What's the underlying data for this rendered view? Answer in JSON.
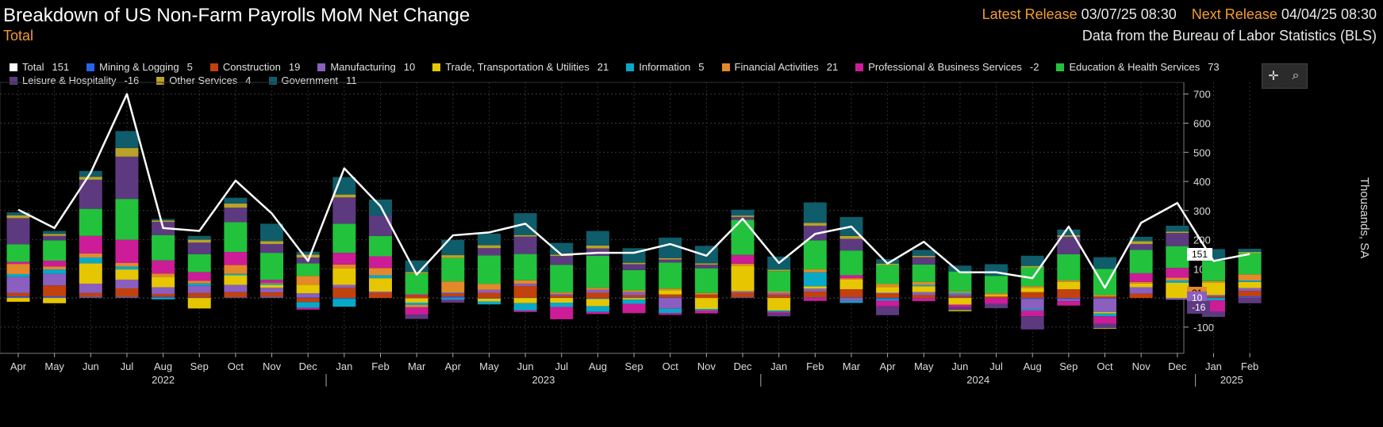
{
  "header": {
    "title": "Breakdown of US Non-Farm Payrolls MoM Net Change",
    "subtitle": "Total",
    "latest_label": "Latest Release",
    "latest_value": "03/07/25 08:30",
    "next_label": "Next Release",
    "next_value": "04/04/25 08:30",
    "source": "Data from the Bureau of Labor Statistics (BLS)"
  },
  "legend": [
    {
      "name": "Total",
      "value": "151",
      "color": "#ffffff"
    },
    {
      "name": "Mining & Logging",
      "value": "5",
      "color": "#2563eb"
    },
    {
      "name": "Construction",
      "value": "19",
      "color": "#c2410c"
    },
    {
      "name": "Manufacturing",
      "value": "10",
      "color": "#8b5fbf"
    },
    {
      "name": "Trade, Transportation & Utilities",
      "value": "21",
      "color": "#e6c600"
    },
    {
      "name": "Information",
      "value": "5",
      "color": "#08a8c8"
    },
    {
      "name": "Financial Activities",
      "value": "21",
      "color": "#e3892b"
    },
    {
      "name": "Professional & Business Services",
      "value": "-2",
      "color": "#cc1c98"
    },
    {
      "name": "Education & Health Services",
      "value": "73",
      "color": "#22c23c"
    },
    {
      "name": "Leisure & Hospitality",
      "value": "-16",
      "color": "#5d3a80"
    },
    {
      "name": "Other Services",
      "value": "4",
      "color": "#b8a22a"
    },
    {
      "name": "Government",
      "value": "11",
      "color": "#0f5c6a"
    }
  ],
  "toolbar": {
    "crosshair_icon": "crosshair-icon",
    "zoom_icon": "zoom-icon"
  },
  "chart_data": {
    "type": "bar",
    "stacked": true,
    "ylabel": "Thousands, SA",
    "ylim": [
      -190,
      740
    ],
    "yticks": [
      -100,
      100,
      200,
      300,
      400,
      500,
      600,
      700
    ],
    "grid": true,
    "categories": [
      "Apr",
      "May",
      "Jun",
      "Jul",
      "Aug",
      "Sep",
      "Oct",
      "Nov",
      "Dec",
      "Jan",
      "Feb",
      "Mar",
      "Apr",
      "May",
      "Jun",
      "Jul",
      "Aug",
      "Sep",
      "Oct",
      "Nov",
      "Dec",
      "Jan",
      "Feb",
      "Mar",
      "Apr",
      "May",
      "Jun",
      "Jul",
      "Aug",
      "Sep",
      "Oct",
      "Nov",
      "Dec",
      "Jan",
      "Feb"
    ],
    "years": [
      {
        "label": "2022",
        "start": 0,
        "end": 8
      },
      {
        "label": "2023",
        "start": 9,
        "end": 20
      },
      {
        "label": "2024",
        "start": 21,
        "end": 32
      },
      {
        "label": "2025",
        "start": 33,
        "end": 34
      }
    ],
    "series": [
      {
        "name": "Mining & Logging",
        "color": "#2563eb",
        "values": [
          5,
          5,
          3,
          3,
          4,
          2,
          2,
          3,
          2,
          -3,
          0,
          -1,
          5,
          -2,
          1,
          1,
          -3,
          2,
          2,
          0,
          2,
          1,
          2,
          2,
          -4,
          -1,
          2,
          0,
          -3,
          -3,
          -2,
          0,
          -1,
          2,
          5
        ]
      },
      {
        "name": "Construction",
        "color": "#c2410c",
        "values": [
          12,
          38,
          14,
          30,
          10,
          15,
          18,
          16,
          -14,
          35,
          18,
          11,
          10,
          18,
          40,
          8,
          18,
          8,
          10,
          12,
          16,
          10,
          20,
          28,
          15,
          10,
          6,
          5,
          20,
          30,
          5,
          15,
          0,
          5,
          19
        ]
      },
      {
        "name": "Manufacturing",
        "color": "#8b5fbf",
        "values": [
          55,
          40,
          32,
          30,
          23,
          25,
          25,
          16,
          14,
          10,
          4,
          3,
          5,
          10,
          8,
          5,
          10,
          10,
          -37,
          0,
          5,
          6,
          10,
          -10,
          3,
          10,
          5,
          0,
          -35,
          -8,
          -46,
          22,
          -5,
          3,
          10
        ]
      },
      {
        "name": "Trade, Transportation & Utilities",
        "color": "#e6c600",
        "values": [
          -13,
          -18,
          70,
          35,
          36,
          -36,
          33,
          10,
          30,
          56,
          46,
          -15,
          4,
          -10,
          -18,
          -16,
          -25,
          -5,
          15,
          -38,
          88,
          -43,
          8,
          33,
          20,
          20,
          -23,
          5,
          15,
          25,
          -5,
          13,
          52,
          43,
          21
        ]
      },
      {
        "name": "Information",
        "color": "#08a8c8",
        "values": [
          10,
          15,
          20,
          10,
          -5,
          8,
          5,
          5,
          -20,
          -27,
          10,
          -8,
          -6,
          -10,
          -25,
          -15,
          -20,
          -15,
          -15,
          -5,
          0,
          -5,
          48,
          -7,
          -5,
          5,
          5,
          0,
          -5,
          0,
          -10,
          0,
          8,
          -8,
          5
        ]
      },
      {
        "name": "Financial Activities",
        "color": "#e3892b",
        "values": [
          35,
          10,
          14,
          12,
          11,
          9,
          30,
          2,
          30,
          14,
          25,
          -8,
          33,
          20,
          12,
          5,
          7,
          6,
          5,
          5,
          7,
          5,
          10,
          5,
          10,
          10,
          5,
          6,
          5,
          5,
          5,
          5,
          10,
          5,
          21
        ]
      },
      {
        "name": "Professional & Business Services",
        "color": "#cc1c98",
        "values": [
          7,
          20,
          60,
          80,
          45,
          30,
          45,
          10,
          -6,
          40,
          40,
          -25,
          -3,
          0,
          -5,
          -42,
          -7,
          -32,
          -6,
          -10,
          30,
          -5,
          -10,
          10,
          -20,
          -10,
          -8,
          -20,
          -20,
          -15,
          -25,
          30,
          33,
          -39,
          -2
        ]
      },
      {
        "name": "Education & Health Services",
        "color": "#22c23c",
        "values": [
          60,
          70,
          93,
          140,
          87,
          61,
          102,
          93,
          43,
          100,
          70,
          70,
          80,
          98,
          90,
          95,
          110,
          70,
          90,
          85,
          120,
          70,
          100,
          85,
          65,
          60,
          68,
          60,
          65,
          90,
          90,
          80,
          75,
          70,
          73
        ]
      },
      {
        "name": "Leisure & Hospitality",
        "color": "#5d3a80",
        "values": [
          90,
          15,
          100,
          145,
          45,
          40,
          50,
          30,
          20,
          90,
          70,
          -15,
          -7,
          25,
          60,
          30,
          25,
          20,
          10,
          12,
          10,
          -10,
          50,
          40,
          -30,
          25,
          -10,
          -15,
          -45,
          60,
          -15,
          20,
          45,
          -18,
          -16
        ]
      },
      {
        "name": "Other Services",
        "color": "#b8a22a",
        "values": [
          10,
          7,
          10,
          30,
          5,
          10,
          14,
          10,
          10,
          10,
          0,
          5,
          10,
          10,
          5,
          5,
          10,
          5,
          5,
          5,
          5,
          5,
          10,
          10,
          5,
          5,
          -5,
          0,
          5,
          5,
          -3,
          10,
          5,
          0,
          4
        ]
      },
      {
        "name": "Government",
        "color": "#0f5c6a",
        "values": [
          10,
          10,
          20,
          58,
          5,
          13,
          20,
          60,
          10,
          60,
          55,
          40,
          53,
          40,
          75,
          40,
          50,
          50,
          70,
          60,
          20,
          45,
          70,
          65,
          15,
          20,
          20,
          40,
          35,
          20,
          40,
          15,
          20,
          40,
          11
        ]
      }
    ],
    "total": {
      "name": "Total",
      "color": "#ffffff",
      "values": [
        303,
        240,
        430,
        700,
        240,
        230,
        403,
        290,
        127,
        445,
        315,
        80,
        215,
        225,
        255,
        148,
        155,
        155,
        185,
        145,
        272,
        120,
        220,
        245,
        118,
        193,
        88,
        88,
        68,
        245,
        35,
        258,
        326,
        127,
        151
      ]
    },
    "right_tags": [
      {
        "text": "151",
        "value": 151,
        "bg": "#ffffff",
        "fg": "#000000"
      },
      {
        "text": "21",
        "value": 21,
        "bg": "#e3892b",
        "fg": "#000000"
      },
      {
        "text": "10",
        "value": 10,
        "bg": "#8b5fbf",
        "fg": "#ffffff"
      },
      {
        "text": "-16",
        "value": -16,
        "bg": "#5d3a80",
        "fg": "#ffffff"
      }
    ]
  }
}
